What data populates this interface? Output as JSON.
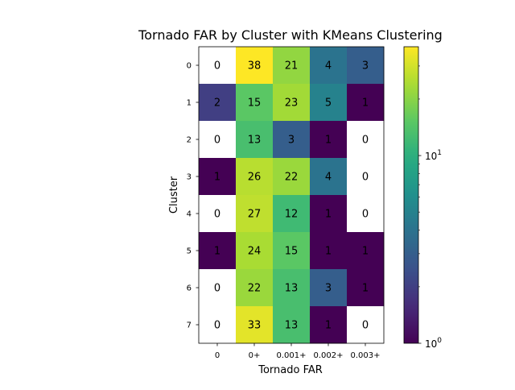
{
  "chart_data": {
    "type": "heatmap",
    "title": "Tornado FAR by Cluster with KMeans Clustering",
    "xlabel": "Tornado FAR",
    "ylabel": "Cluster",
    "x_categories": [
      "0",
      "0+",
      "0.001+",
      "0.002+",
      "0.003+"
    ],
    "y_categories": [
      "0",
      "1",
      "2",
      "3",
      "4",
      "5",
      "6",
      "7"
    ],
    "values": [
      [
        0,
        38,
        21,
        4,
        3
      ],
      [
        2,
        15,
        23,
        5,
        1
      ],
      [
        0,
        13,
        3,
        1,
        0
      ],
      [
        1,
        26,
        22,
        4,
        0
      ],
      [
        0,
        27,
        12,
        1,
        0
      ],
      [
        1,
        24,
        15,
        1,
        1
      ],
      [
        0,
        22,
        13,
        3,
        1
      ],
      [
        0,
        33,
        13,
        1,
        0
      ]
    ],
    "colorscale": "viridis",
    "color_scale_type": "log",
    "zero_color": "#ffffff",
    "colorbar_range": [
      1,
      38
    ],
    "colorbar_ticks": [
      {
        "value": 1,
        "label_base": "10",
        "label_exp": "0"
      },
      {
        "value": 10,
        "label_base": "10",
        "label_exp": "1"
      }
    ],
    "grid": false,
    "legend": "colorbar-right"
  }
}
